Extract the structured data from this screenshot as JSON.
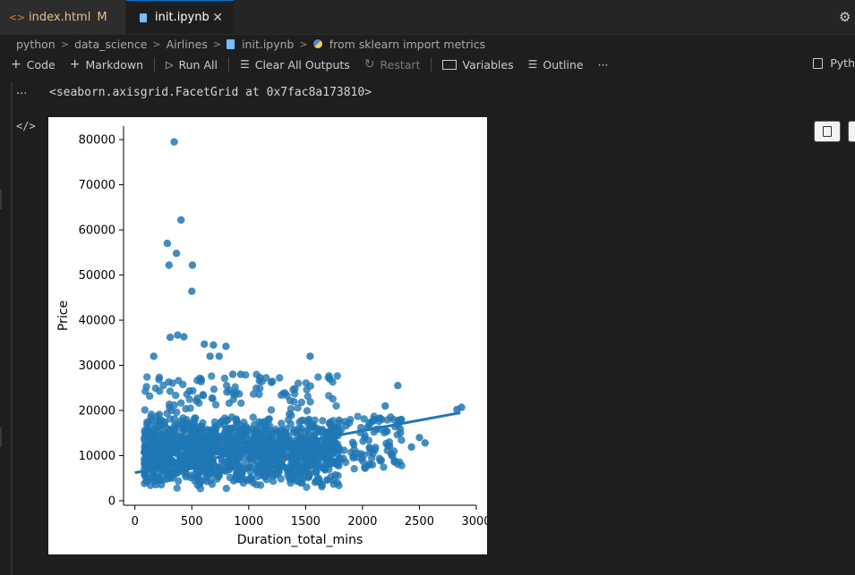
{
  "tabs": [
    {
      "label": "index.html",
      "modified_flag": "M",
      "icon": "code-brackets-icon"
    },
    {
      "label": "init.ipynb",
      "close": "✕",
      "icon": "notebook-icon"
    }
  ],
  "breadcrumb": [
    "python",
    "data_science",
    "Airlines",
    "init.ipynb",
    "from sklearn import metrics"
  ],
  "toolbar": {
    "code": "Code",
    "markdown": "Markdown",
    "run_all": "Run All",
    "clear_all_outputs": "Clear All Outputs",
    "restart": "Restart",
    "variables": "Variables",
    "outline": "Outline",
    "more": "···",
    "kernel": "Pyth"
  },
  "cell": {
    "output_text": "<seaborn.axisgrid.FacetGrid at 0x7fac8a173810>",
    "ellipsis": "···",
    "code_icon": "</>"
  },
  "chart_data": {
    "type": "scatter",
    "xlabel": "Duration_total_mins",
    "ylabel": "Price",
    "xlim": [
      -100,
      3000
    ],
    "ylim": [
      -1000,
      83000
    ],
    "xticks": [
      0,
      500,
      1000,
      1500,
      2000,
      2500,
      3000
    ],
    "yticks": [
      0,
      10000,
      20000,
      30000,
      40000,
      50000,
      60000,
      70000,
      80000
    ],
    "color": "#1f77b4",
    "regression_line": {
      "x": [
        0,
        2860
      ],
      "y": [
        6200,
        19500
      ]
    },
    "outliers": [
      {
        "x": 345,
        "y": 79500
      },
      {
        "x": 405,
        "y": 62200
      },
      {
        "x": 285,
        "y": 57000
      },
      {
        "x": 365,
        "y": 54800
      },
      {
        "x": 300,
        "y": 52200
      },
      {
        "x": 505,
        "y": 52200
      },
      {
        "x": 500,
        "y": 46400
      },
      {
        "x": 375,
        "y": 36700
      },
      {
        "x": 310,
        "y": 36200
      },
      {
        "x": 430,
        "y": 36300
      },
      {
        "x": 610,
        "y": 34700
      },
      {
        "x": 690,
        "y": 34500
      },
      {
        "x": 800,
        "y": 34200
      },
      {
        "x": 165,
        "y": 32000
      },
      {
        "x": 660,
        "y": 32000
      },
      {
        "x": 740,
        "y": 32000
      },
      {
        "x": 1540,
        "y": 32000
      },
      {
        "x": 2310,
        "y": 25500
      },
      {
        "x": 2830,
        "y": 20200
      },
      {
        "x": 2870,
        "y": 20700
      },
      {
        "x": 2550,
        "y": 12800
      },
      {
        "x": 2500,
        "y": 14000
      },
      {
        "x": 2430,
        "y": 11900
      },
      {
        "x": 2200,
        "y": 21000
      },
      {
        "x": 1100,
        "y": 27300
      },
      {
        "x": 1200,
        "y": 26200
      },
      {
        "x": 860,
        "y": 28000
      },
      {
        "x": 930,
        "y": 28000
      }
    ],
    "dense_cluster": {
      "x_range": [
        80,
        1800
      ],
      "y_range": [
        2500,
        19500
      ],
      "n": 1400
    }
  }
}
